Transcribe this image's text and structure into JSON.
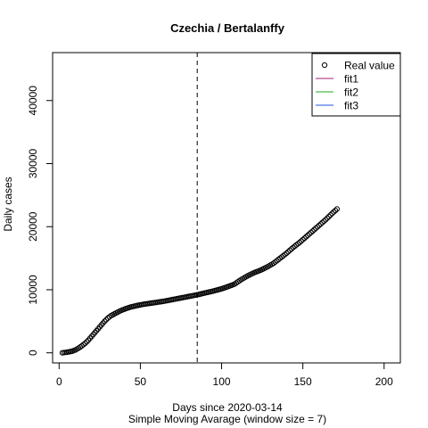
{
  "chart_data": {
    "type": "scatter",
    "title": "Czechia / Bertalanffy",
    "xlabel": "Days since 2020-03-14",
    "subtitle": "Simple Moving Avarage (window size = 7)",
    "ylabel": "Daily cases",
    "xlim": [
      -4,
      210
    ],
    "ylim": [
      -1600,
      47600
    ],
    "x_ticks": [
      0,
      50,
      100,
      150,
      200
    ],
    "y_ticks": [
      0,
      10000,
      20000,
      30000,
      40000
    ],
    "vline_x": 85,
    "grid": false,
    "legend": {
      "position": "top-right",
      "entries": [
        {
          "label": "Real value",
          "symbol": "circle",
          "color": "#000000"
        },
        {
          "label": "fit1",
          "symbol": "line",
          "color": "#a0206e"
        },
        {
          "label": "fit2",
          "symbol": "line",
          "color": "#22aa22"
        },
        {
          "label": "fit3",
          "symbol": "line",
          "color": "#2255dd"
        }
      ]
    },
    "series": [
      {
        "marker": "open-circle",
        "color": "#000000",
        "anchors_x": [
          2,
          5,
          8,
          10,
          12,
          14,
          16,
          18,
          20,
          22,
          24,
          26,
          28,
          30,
          32,
          35,
          38,
          41,
          44,
          48,
          52,
          56,
          60,
          65,
          70,
          75,
          80,
          85,
          90,
          95,
          100,
          104,
          108,
          110,
          112,
          114,
          116,
          118,
          120,
          124,
          128,
          132,
          136,
          140,
          144,
          148,
          152,
          156,
          160,
          164,
          168,
          171
        ],
        "anchors_y": [
          0,
          100,
          250,
          450,
          750,
          1100,
          1500,
          2000,
          2600,
          3200,
          3800,
          4400,
          5000,
          5500,
          5900,
          6300,
          6700,
          7000,
          7250,
          7500,
          7700,
          7850,
          8000,
          8200,
          8450,
          8700,
          8950,
          9200,
          9500,
          9800,
          10150,
          10500,
          10900,
          11250,
          11600,
          11900,
          12200,
          12450,
          12700,
          13100,
          13600,
          14200,
          15000,
          15800,
          16700,
          17500,
          18400,
          19300,
          20200,
          21100,
          22100,
          22800
        ]
      }
    ]
  }
}
